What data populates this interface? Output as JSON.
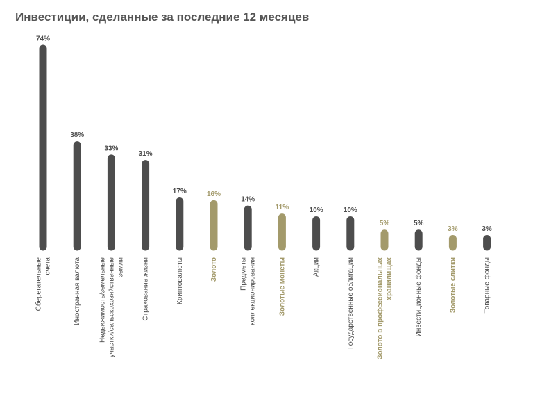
{
  "chart_data": {
    "type": "bar",
    "title": "Инвестиции, сделанные за последние 12 месяцев",
    "xlabel": "",
    "ylabel": "",
    "ylim": [
      0,
      74
    ],
    "grid": false,
    "legend": "none",
    "value_suffix": "%",
    "colors": {
      "default": "#4d4d4d",
      "highlight": "#a39a6b",
      "title": "#555555"
    },
    "categories": [
      "Сберегательные счета",
      "Иностранная валюта",
      "Недвижимость/земельные участки/сельскохозяйственные земли",
      "Страхование жизни",
      "Криптовалюты",
      "Золото",
      "Предметы коллекционирования",
      "Золотые монеты",
      "Акции",
      "Государственные облигации",
      "Золото в профессиональных хранилищах",
      "Инвестиционные фонды",
      "Золотые слитки",
      "Товарные фонды"
    ],
    "category_lines": [
      [
        "Сберегательные",
        "счета"
      ],
      [
        "Иностранная валюта"
      ],
      [
        "Недвижимость/земельные",
        "участки/сельскохозяйственные",
        "земли"
      ],
      [
        "Страхование жизни"
      ],
      [
        "Криптовалюты"
      ],
      [
        "Золото"
      ],
      [
        "Предметы",
        "коллекционирования"
      ],
      [
        "Золотые монеты"
      ],
      [
        "Акции"
      ],
      [
        "Государственные облигации"
      ],
      [
        "Золото в профессиональных",
        "хранилищах"
      ],
      [
        "Инвестиционные фонды"
      ],
      [
        "Золотые слитки"
      ],
      [
        "Товарные фонды"
      ]
    ],
    "values": [
      74,
      38,
      33,
      31,
      17,
      16,
      14,
      11,
      10,
      10,
      5,
      5,
      3,
      3
    ],
    "highlight": [
      false,
      false,
      false,
      false,
      false,
      true,
      false,
      true,
      false,
      false,
      true,
      false,
      true,
      false
    ]
  }
}
